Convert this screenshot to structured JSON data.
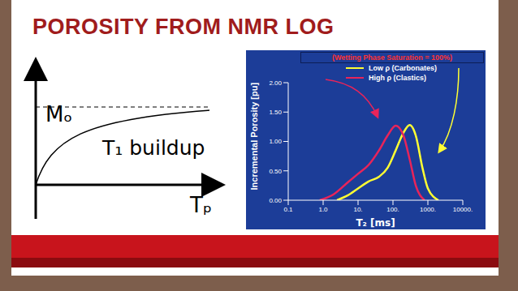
{
  "title": "POROSITY FROM NMR LOG",
  "diagram": {
    "asymptote_label": "Mₒ",
    "curve_label": "T₁ buildup",
    "x_axis_label": "Tₚ"
  },
  "chart_data": {
    "type": "line",
    "annotation": "(Wetting Phase Saturation = 100%)",
    "x_label": "T₂ [ms]",
    "y_label": "Incremental Porosity [pu]",
    "log": "x",
    "grid": false,
    "legend": "upper right",
    "xlim": [
      0.1,
      10000
    ],
    "xticks": [
      0.1,
      {
        "value": 1,
        "label": "1.0"
      },
      {
        "value": 10,
        "label": "10."
      },
      {
        "value": 100,
        "label": "100."
      },
      {
        "value": 1000,
        "label": "1000."
      },
      {
        "value": 10000,
        "label": "10000."
      }
    ],
    "ylim": [
      0,
      2
    ],
    "yticks": [
      {
        "value": 0,
        "label": "0.00"
      },
      {
        "value": 0.5,
        "label": "0.50"
      },
      {
        "value": 1,
        "label": "1.00"
      },
      {
        "value": 1.5,
        "label": "1.50"
      },
      {
        "value": 2,
        "label": "2.00"
      }
    ],
    "series": [
      {
        "name": "Low ρ (Carbonates)",
        "color": "#ffff33",
        "x": [
          2.5,
          5,
          10,
          20,
          40,
          70,
          120,
          200,
          300,
          450,
          700,
          1000,
          2000
        ],
        "values": [
          0,
          0.08,
          0.2,
          0.32,
          0.4,
          0.55,
          0.85,
          1.15,
          1.28,
          1.1,
          0.55,
          0.2,
          0
        ]
      },
      {
        "name": "High ρ (Clastics)",
        "color": "#e8245a",
        "x": [
          0.8,
          2,
          5,
          10,
          20,
          40,
          70,
          120,
          200,
          300,
          450,
          800
        ],
        "values": [
          0,
          0.1,
          0.3,
          0.45,
          0.6,
          0.85,
          1.1,
          1.27,
          1.1,
          0.7,
          0.25,
          0
        ]
      }
    ]
  }
}
